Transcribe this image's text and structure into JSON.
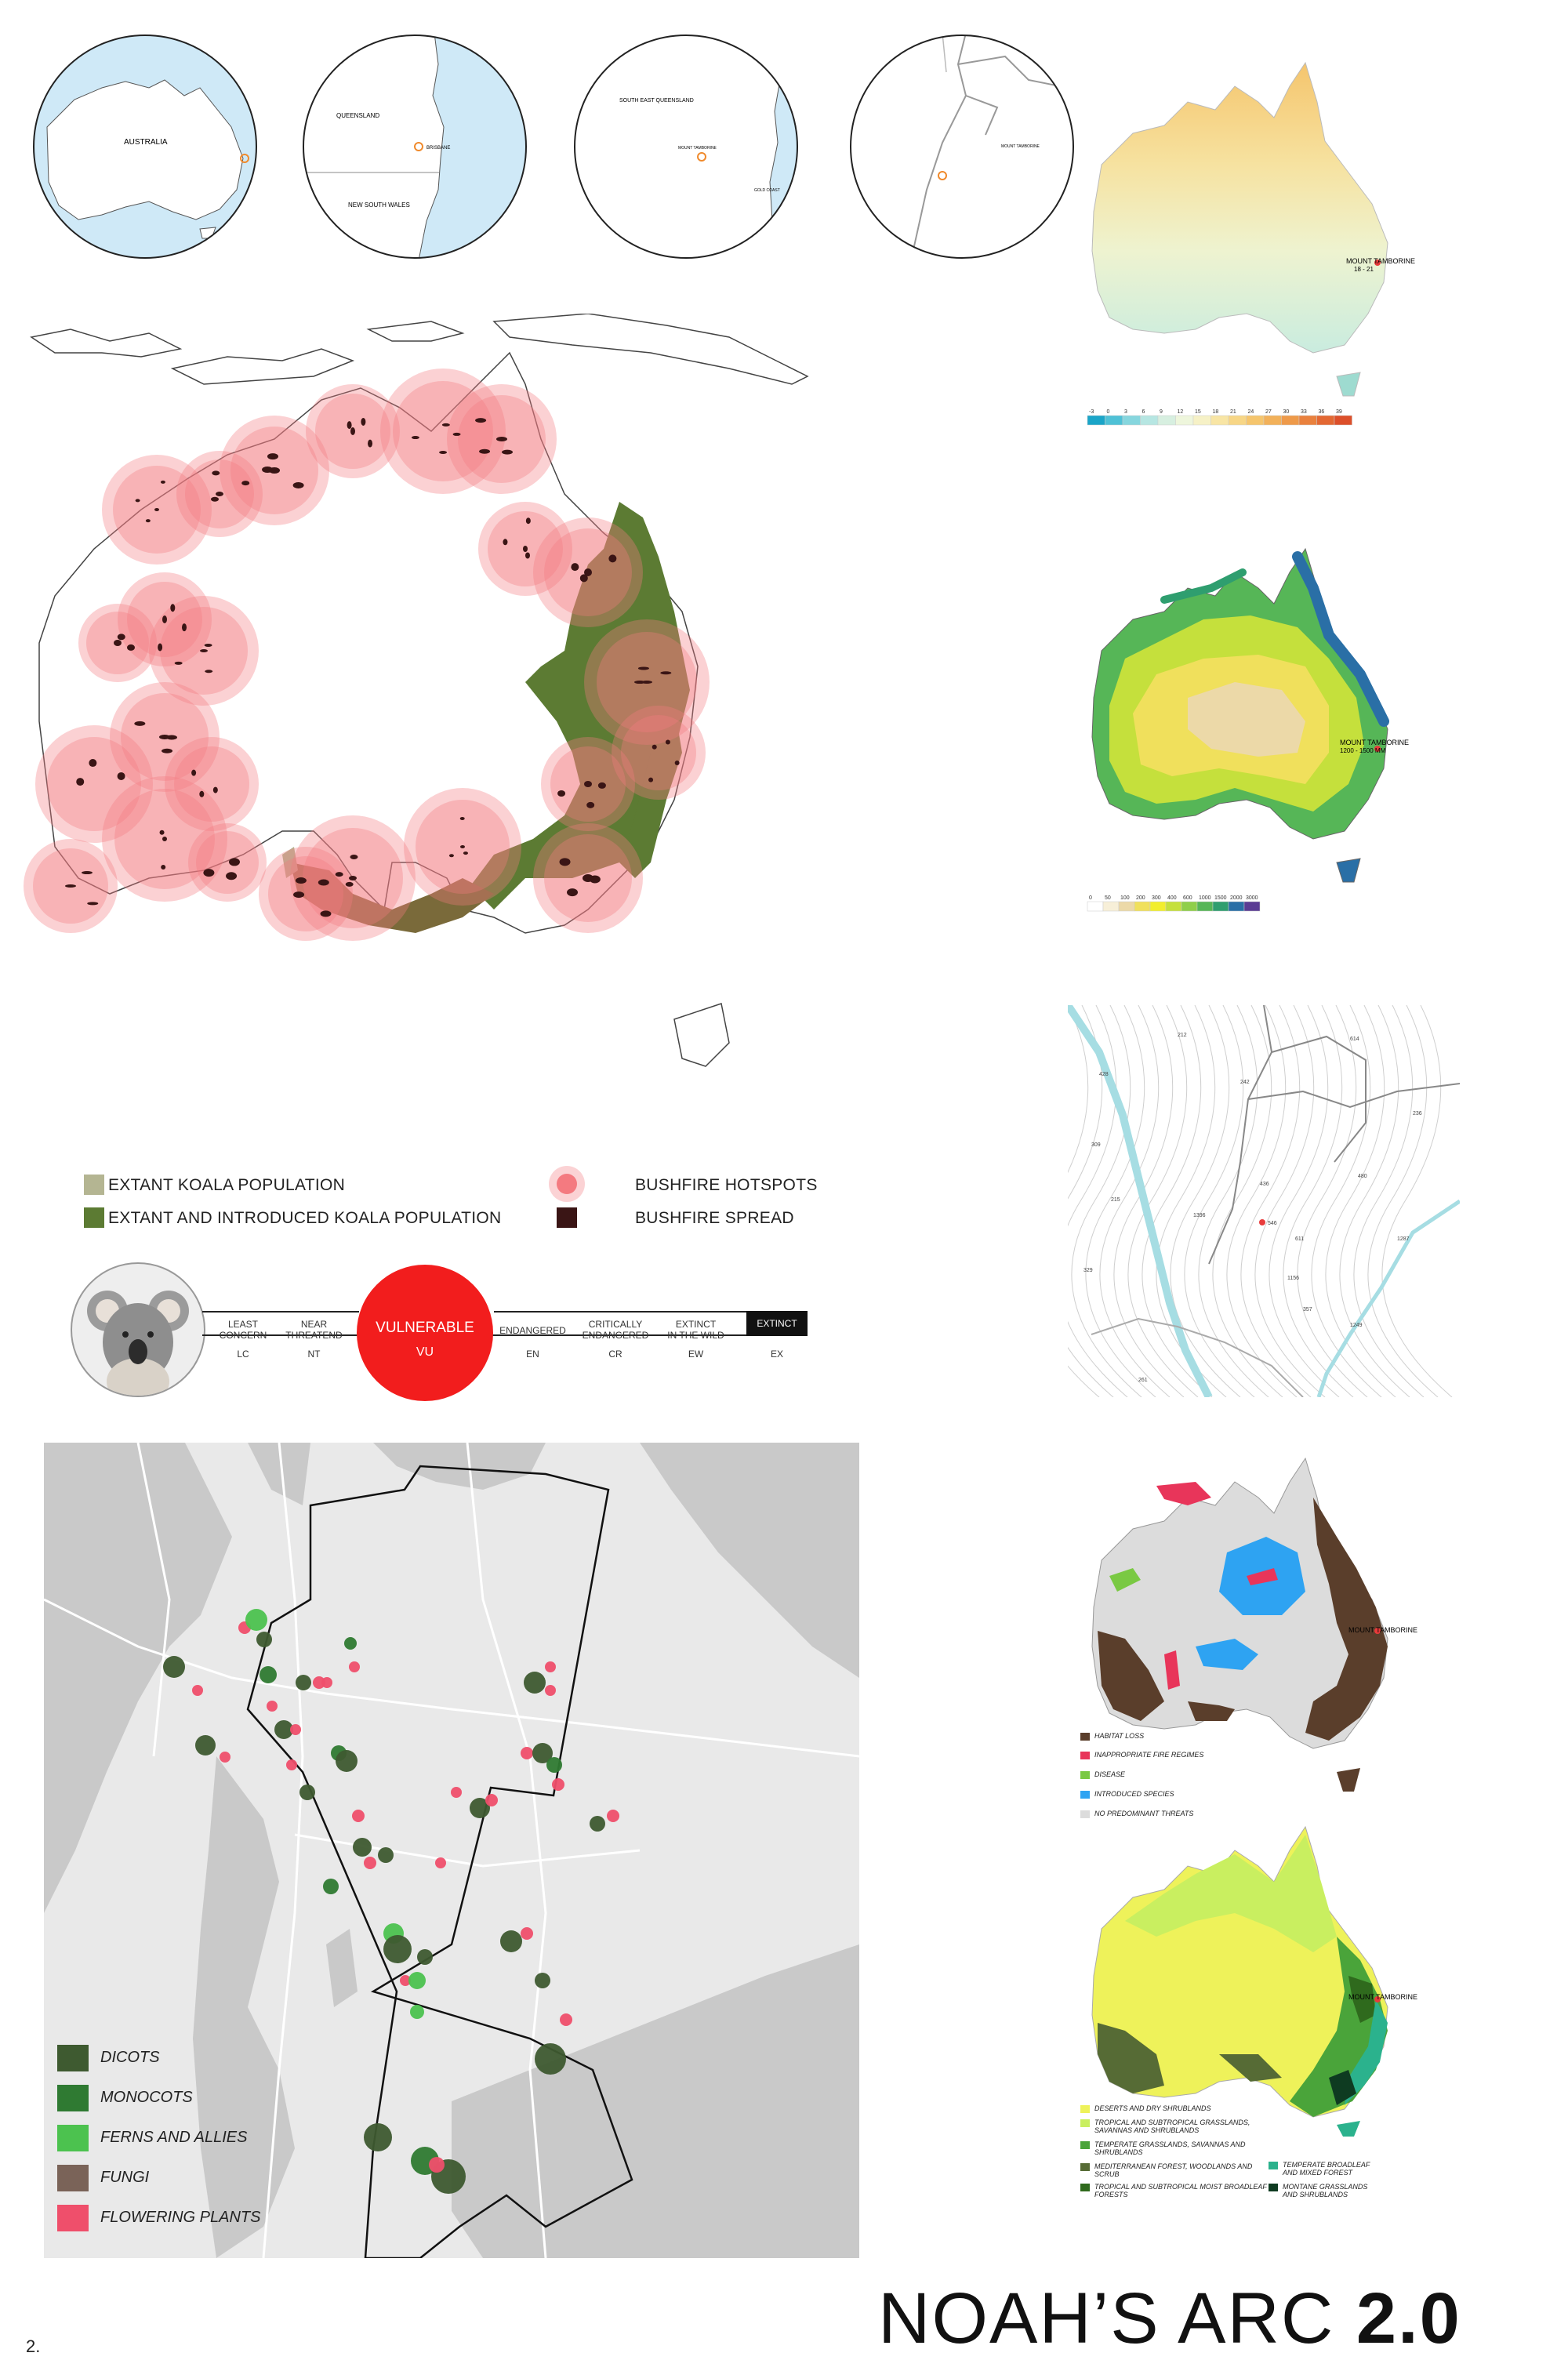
{
  "locator_maps": [
    {
      "label": "AUSTRALIA"
    },
    {
      "labels": [
        "QUEENSLAND",
        "BRISBANE",
        "NEW SOUTH WALES"
      ]
    },
    {
      "labels": [
        "SOUTH EAST QUEENSLAND",
        "MOUNT TAMBORINE",
        "GOLD COAST"
      ]
    },
    {
      "label": "MOUNT TAMBORINE"
    }
  ],
  "temperature_map": {
    "place_label": "MOUNT TAMBORINE",
    "value_label": "18 - 21",
    "scale_ticks": [
      "-3",
      "0",
      "3",
      "6",
      "9",
      "12",
      "15",
      "18",
      "21",
      "24",
      "27",
      "30",
      "33",
      "36",
      "39"
    ],
    "scale_colors": [
      "#1aa5c8",
      "#4fc1d6",
      "#86d6de",
      "#b6e6e2",
      "#d7efe0",
      "#eef6dc",
      "#f6f1c6",
      "#f8e5a4",
      "#f7d686",
      "#f5c56d",
      "#f2b15a",
      "#ee9a4a",
      "#e9813e",
      "#e36833",
      "#dc4f2a"
    ]
  },
  "rainfall_map": {
    "place_label": "MOUNT TAMBORINE",
    "value_label": "1200 - 1500 MM",
    "scale_ticks": [
      "0",
      "50",
      "100",
      "200",
      "300",
      "400",
      "600",
      "1000",
      "1500",
      "2000",
      "3000"
    ],
    "scale_colors": [
      "#ffffff",
      "#f7efd8",
      "#ecd9a8",
      "#f0e05c",
      "#f2ee2e",
      "#c5e03c",
      "#8fcf4a",
      "#56b657",
      "#2f9e6f",
      "#2a6fa6",
      "#5b3c94"
    ]
  },
  "koala_map": {
    "legend": [
      {
        "label": "EXTANT KOALA POPULATION",
        "color": "#b4b592"
      },
      {
        "label": "EXTANT AND INTRODUCED KOALA POPULATION",
        "color": "#5c7b33"
      },
      {
        "label": "BUSHFIRE HOTSPOTS",
        "color": "#f47a80"
      },
      {
        "label": "BUSHFIRE SPREAD",
        "color": "#3a1515"
      }
    ]
  },
  "conservation_status": {
    "categories": [
      {
        "name": "LEAST\nCONCERN",
        "code": "LC"
      },
      {
        "name": "NEAR\nTHREATEND",
        "code": "NT"
      },
      {
        "name": "VULNERABLE",
        "code": "VU",
        "highlighted": true
      },
      {
        "name": "ENDANGERED",
        "code": "EN"
      },
      {
        "name": "CRITICALLY\nENDANGERED",
        "code": "CR"
      },
      {
        "name": "EXTINCT\nIN THE WILD",
        "code": "EW"
      },
      {
        "name": "EXTINCT",
        "code": "EX"
      }
    ],
    "highlight_color": "#f21d1d"
  },
  "threats_map": {
    "place_label": "MOUNT TAMBORINE",
    "legend": [
      {
        "label": "HABITAT LOSS",
        "color": "#5a3e2b"
      },
      {
        "label": "INAPPROPRIATE FIRE REGIMES",
        "color": "#e8355a"
      },
      {
        "label": "DISEASE",
        "color": "#7ac943"
      },
      {
        "label": "INTRODUCED SPECIES",
        "color": "#2ea3f2"
      },
      {
        "label": "NO PREDOMINANT THREATS",
        "color": "#dcdcdc"
      }
    ]
  },
  "biome_map": {
    "place_label": "MOUNT TAMBORINE",
    "legend": [
      {
        "label": "DESERTS AND DRY SHRUBLANDS",
        "color": "#eef25a"
      },
      {
        "label": "TROPICAL AND SUBTROPICAL GRASSLANDS, SAVANNAS AND SHRUBLANDS",
        "color": "#c9ef60"
      },
      {
        "label": "TEMPERATE GRASSLANDS, SAVANNAS AND SHRUBLANDS",
        "color": "#4aa43a"
      },
      {
        "label": "MEDITERRANEAN FOREST, WOODLANDS AND SCRUB",
        "color": "#566b35"
      },
      {
        "label": "TROPICAL AND SUBTROPICAL MOIST BROADLEAF FORESTS",
        "color": "#2f6a1d"
      },
      {
        "label": "TEMPERATE BROADLEAF AND MIXED FOREST",
        "color": "#2bb28d"
      },
      {
        "label": "MONTANE GRASSLANDS AND SHRUBLANDS",
        "color": "#0e3b21"
      }
    ]
  },
  "flora_map": {
    "legend": [
      {
        "label": "DICOTS",
        "color": "#3e5a30"
      },
      {
        "label": "MONOCOTS",
        "color": "#2f7a32"
      },
      {
        "label": "FERNS AND ALLIES",
        "color": "#4cc24f"
      },
      {
        "label": "FUNGI",
        "color": "#7a6358"
      },
      {
        "label": "FLOWERING PLANTS",
        "color": "#ef4f6b"
      }
    ]
  },
  "contour_map": {
    "spot_heights": [
      "212",
      "614",
      "428",
      "242",
      "309",
      "436",
      "546",
      "480",
      "215",
      "236",
      "1396",
      "611",
      "1287",
      "329",
      "1156",
      "357",
      "1249",
      "261"
    ]
  },
  "footer": {
    "page_number": "2.",
    "title_light": "NOAH’S ARC ",
    "title_bold": "2.0"
  }
}
